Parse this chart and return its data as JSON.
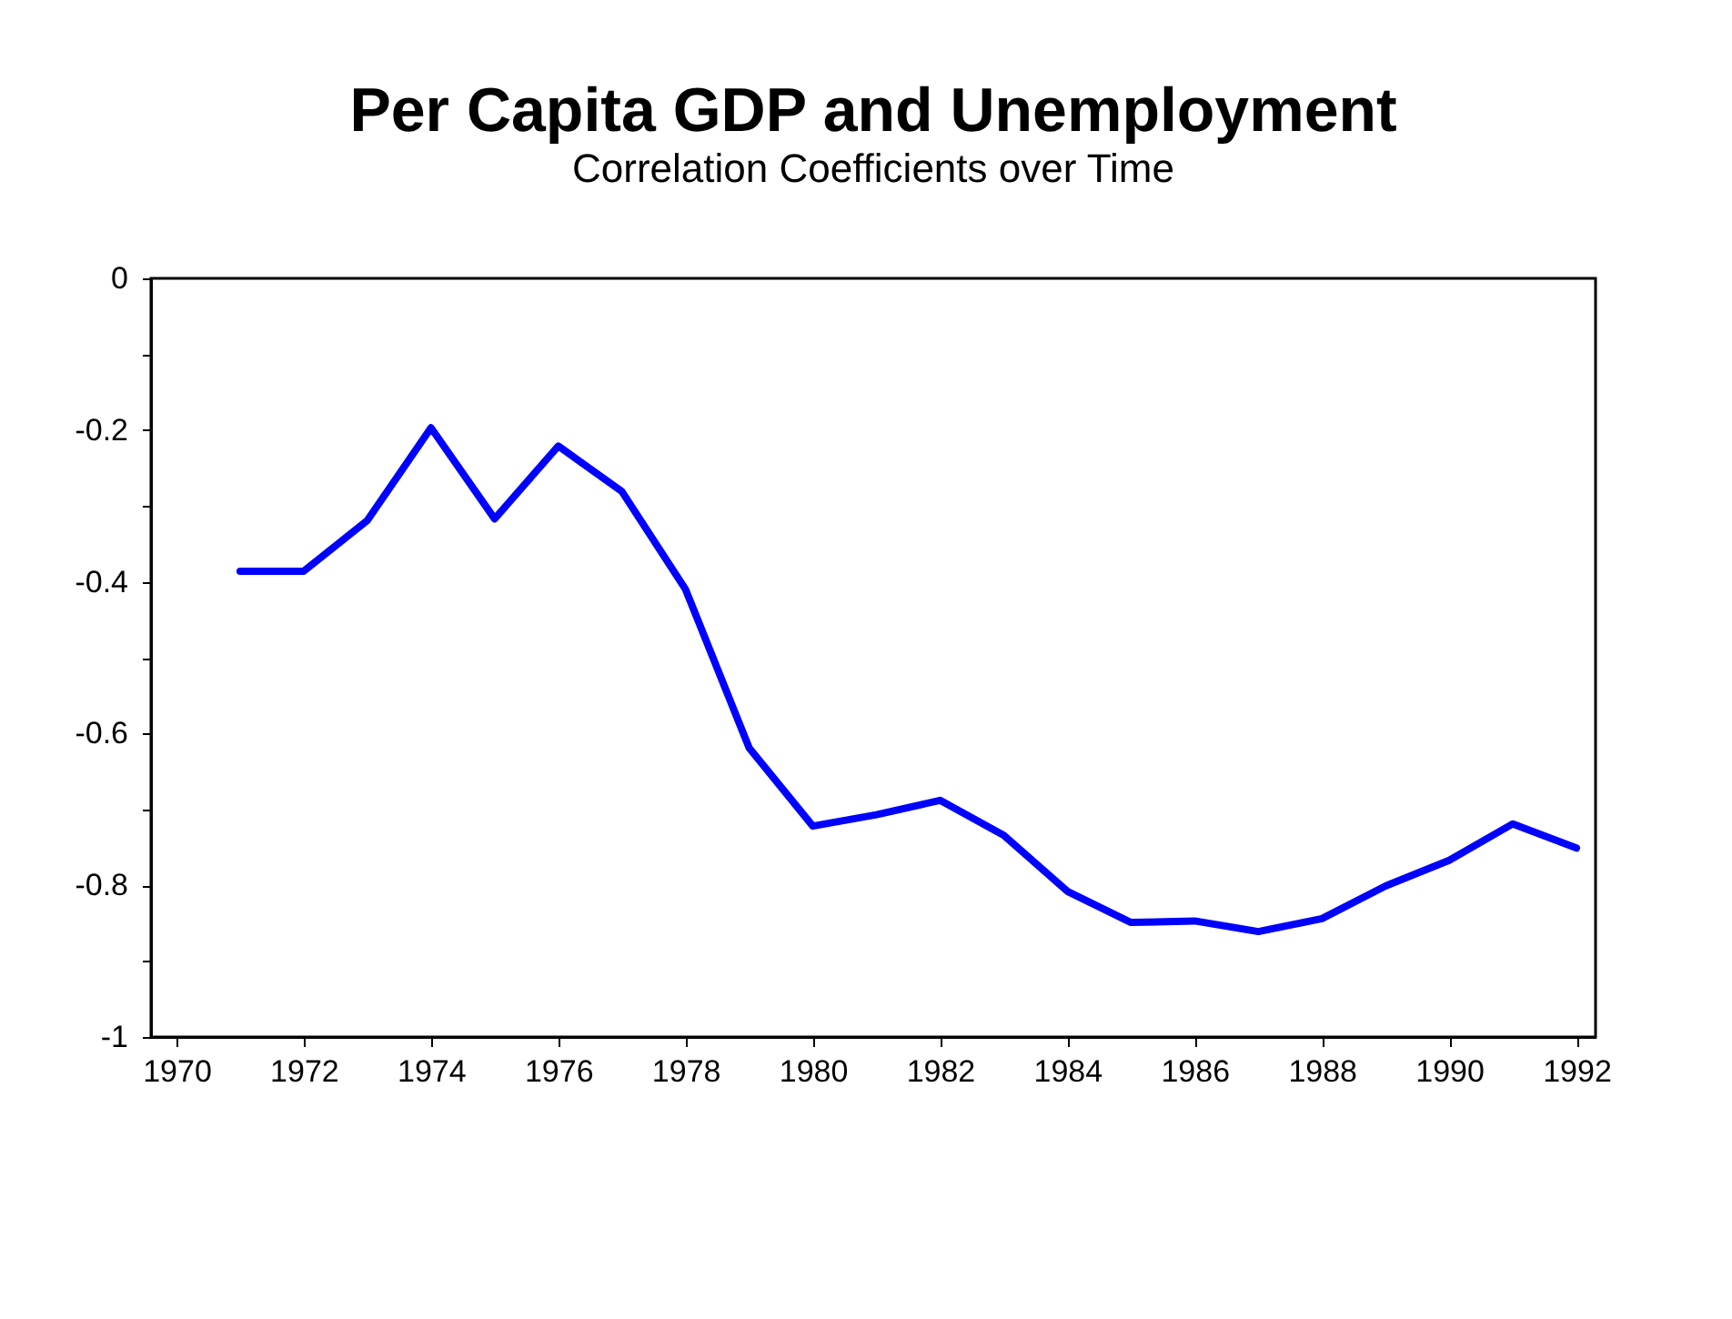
{
  "chart_data": {
    "type": "line",
    "title": "Per Capita GDP and Unemployment",
    "subtitle": "Correlation Coefficients over Time",
    "x": [
      1971,
      1972,
      1973,
      1974,
      1975,
      1976,
      1977,
      1978,
      1979,
      1980,
      1981,
      1982,
      1983,
      1984,
      1985,
      1986,
      1987,
      1988,
      1989,
      1990,
      1991,
      1992
    ],
    "series": [
      {
        "color": "#0000ff",
        "values": [
          -0.386,
          -0.386,
          -0.319,
          -0.197,
          -0.317,
          -0.221,
          -0.281,
          -0.41,
          -0.619,
          -0.722,
          -0.707,
          -0.688,
          -0.734,
          -0.808,
          -0.849,
          -0.847,
          -0.861,
          -0.844,
          -0.801,
          -0.767,
          -0.719,
          -0.751
        ]
      }
    ],
    "xlim": [
      1969.6,
      1992.3
    ],
    "xticks": [
      1970,
      1972,
      1974,
      1976,
      1978,
      1980,
      1982,
      1984,
      1986,
      1988,
      1990,
      1992
    ],
    "ylim": [
      -1,
      0
    ],
    "yticks": [
      -1,
      {
        "value": -0.9,
        "label": null
      },
      -0.8,
      {
        "value": -0.7,
        "label": null
      },
      -0.6,
      {
        "value": -0.5,
        "label": null
      },
      -0.4,
      {
        "value": -0.3,
        "label": null
      },
      -0.2,
      {
        "value": -0.1,
        "label": null
      },
      0
    ],
    "grid": false,
    "marker": "none",
    "line_style": "solid"
  }
}
